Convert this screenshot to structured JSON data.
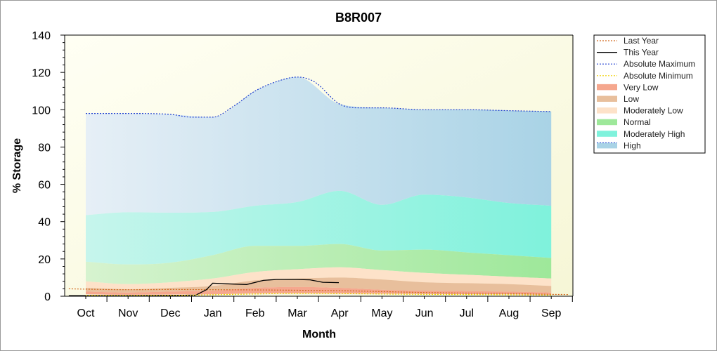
{
  "chart_data": {
    "type": "area",
    "title": "B8R007",
    "xlabel": "Month",
    "ylabel": "% Storage",
    "ylim": [
      0,
      140
    ],
    "yticks": [
      0,
      20,
      40,
      60,
      80,
      100,
      120,
      140
    ],
    "categories": [
      "Oct",
      "Nov",
      "Dec",
      "Jan",
      "Feb",
      "Mar",
      "Apr",
      "May",
      "Jun",
      "Jul",
      "Aug",
      "Sep"
    ],
    "legend_position": "top-right, outside plot",
    "bands": [
      {
        "name": "High",
        "color": "#a9d3e6",
        "lower": [
          43.5,
          45,
          44.8,
          45.2,
          48.5,
          50.5,
          56.5,
          49,
          54.5,
          53,
          50,
          48.5
        ],
        "upper": [
          98,
          98,
          97.5,
          96,
          110,
          117.5,
          103,
          101,
          100,
          100,
          99.5,
          99
        ]
      },
      {
        "name": "Moderately High",
        "color": "#7ff2dc",
        "lower": [
          18.5,
          17,
          18,
          22,
          27,
          27,
          28,
          24.5,
          25,
          23.5,
          22,
          20.5
        ],
        "upper": [
          43.5,
          45,
          44.8,
          45.2,
          48.5,
          50.5,
          56.5,
          49,
          54.5,
          53,
          50,
          48.5
        ]
      },
      {
        "name": "Normal",
        "color": "#9ee89a",
        "lower": [
          8,
          6.5,
          7.5,
          9.5,
          13,
          14.5,
          15.5,
          14,
          12.5,
          11.5,
          10.5,
          9.5
        ],
        "upper": [
          18.5,
          17,
          18,
          22,
          27,
          27,
          28,
          24.5,
          25,
          23.5,
          22,
          20.5
        ]
      },
      {
        "name": "Moderately Low",
        "color": "#fde2c9",
        "lower": [
          4.5,
          3.8,
          4.5,
          5.5,
          8.5,
          9.5,
          10,
          9,
          7.5,
          7,
          6.5,
          5.5
        ],
        "upper": [
          8,
          6.5,
          7.5,
          9.5,
          13,
          14.5,
          15.5,
          14,
          12.5,
          11.5,
          10.5,
          9.5
        ]
      },
      {
        "name": "Low",
        "color": "#e8bf9c",
        "lower": [
          2.5,
          2,
          2.5,
          3,
          4.5,
          5,
          4.5,
          3.5,
          3,
          2.8,
          2.5,
          2
        ],
        "upper": [
          4.5,
          3.8,
          4.5,
          5.5,
          8.5,
          9.5,
          10,
          9,
          7.5,
          7,
          6.5,
          5.5
        ]
      },
      {
        "name": "Very Low",
        "color": "#f5a78e",
        "lower": [
          1,
          0.8,
          0.9,
          1,
          1.5,
          1.6,
          1.5,
          1.4,
          1.2,
          1.1,
          1,
          0.8
        ],
        "upper": [
          2.5,
          2,
          2.5,
          3,
          4.5,
          5,
          4.5,
          3.5,
          3,
          2.8,
          2.5,
          2
        ]
      }
    ],
    "series": [
      {
        "name": "Last Year",
        "color": "#d2691e",
        "style": "dotted",
        "points": [
          [
            -0.4,
            4
          ],
          [
            0,
            3.8
          ],
          [
            1,
            3.5
          ],
          [
            2,
            3.6
          ],
          [
            3,
            3.5
          ],
          [
            4,
            3.4
          ],
          [
            5,
            3.2
          ],
          [
            6,
            3.0
          ],
          [
            7,
            2.5
          ],
          [
            8,
            2.0
          ],
          [
            9,
            1.7
          ],
          [
            10,
            1.5
          ],
          [
            11,
            1.0
          ],
          [
            11.4,
            0.9
          ]
        ]
      },
      {
        "name": "This Year",
        "color": "#000000",
        "style": "solid",
        "points": [
          [
            -0.4,
            0.3
          ],
          [
            0,
            0.3
          ],
          [
            1,
            0.3
          ],
          [
            2,
            0.4
          ],
          [
            2.6,
            0.6
          ],
          [
            2.85,
            3.5
          ],
          [
            3.0,
            7
          ],
          [
            3.5,
            6.5
          ],
          [
            3.8,
            6.3
          ],
          [
            4.2,
            8.5
          ],
          [
            4.5,
            9
          ],
          [
            5,
            9
          ],
          [
            5.3,
            8.8
          ],
          [
            5.6,
            7.5
          ],
          [
            5.98,
            7.3
          ]
        ]
      },
      {
        "name": "Absolute Maximum",
        "color": "#1f3fcf",
        "style": "dotted",
        "points": [
          [
            0,
            98
          ],
          [
            1,
            98
          ],
          [
            2,
            97.5
          ],
          [
            2.5,
            96
          ],
          [
            3,
            96
          ],
          [
            3.5,
            102
          ],
          [
            4,
            110
          ],
          [
            4.5,
            115
          ],
          [
            5,
            117.5
          ],
          [
            5.4,
            115
          ],
          [
            6,
            103
          ],
          [
            6.5,
            101
          ],
          [
            7,
            101
          ],
          [
            8,
            100
          ],
          [
            9,
            100
          ],
          [
            10,
            99.5
          ],
          [
            11,
            99
          ]
        ]
      },
      {
        "name": "Absolute Minimum",
        "color": "#f0d000",
        "style": "dotted",
        "points": [
          [
            0,
            0.5
          ],
          [
            1,
            0.5
          ],
          [
            2,
            0.5
          ],
          [
            3,
            0.8
          ],
          [
            4,
            1.2
          ],
          [
            5,
            1.5
          ],
          [
            6,
            1.4
          ],
          [
            7,
            1.2
          ],
          [
            8,
            1.0
          ],
          [
            9,
            0.9
          ],
          [
            10,
            0.8
          ],
          [
            11,
            0.6
          ]
        ]
      }
    ],
    "legend": [
      {
        "label": "Last Year",
        "kind": "line",
        "color": "#d2691e",
        "dash": "2,2"
      },
      {
        "label": "This Year",
        "kind": "line",
        "color": "#000000",
        "dash": ""
      },
      {
        "label": "Absolute Maximum",
        "kind": "line",
        "color": "#1f3fcf",
        "dash": "2,2"
      },
      {
        "label": "Absolute Minimum",
        "kind": "line",
        "color": "#f0d000",
        "dash": "2,2"
      },
      {
        "label": "Very Low",
        "kind": "band",
        "color": "#f5a78e"
      },
      {
        "label": "Low",
        "kind": "band",
        "color": "#e8bf9c"
      },
      {
        "label": "Moderately Low",
        "kind": "band",
        "color": "#fde2c9"
      },
      {
        "label": "Normal",
        "kind": "band",
        "color": "#9ee89a"
      },
      {
        "label": "Moderately High",
        "kind": "band",
        "color": "#7ff2dc"
      },
      {
        "label": "High",
        "kind": "band",
        "color": "#a9d3e6"
      }
    ]
  }
}
